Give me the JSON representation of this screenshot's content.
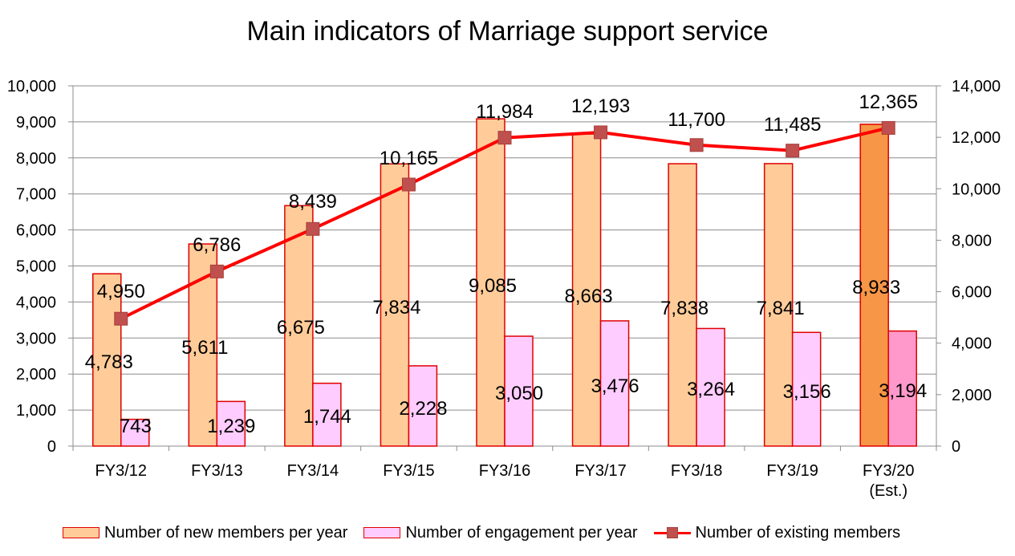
{
  "chart_data": {
    "type": "bar",
    "title": "Main indicators of Marriage support service",
    "categories": [
      "FY3/12",
      "FY3/13",
      "FY3/14",
      "FY3/15",
      "FY3/16",
      "FY3/17",
      "FY3/18",
      "FY3/19",
      "FY3/20\n(Est.)"
    ],
    "series": [
      {
        "name": "Number of new members per year",
        "kind": "bar",
        "axis": "left",
        "values": [
          4783,
          5611,
          6675,
          7834,
          9085,
          8663,
          7838,
          7841,
          8933
        ],
        "labels": [
          "4,783",
          "5,611",
          "6,675",
          "7,834",
          "9,085",
          "8,663",
          "7,838",
          "7,841",
          "8,933"
        ],
        "color": "#FFCC99",
        "stroke": "#E00000",
        "highlight_color": "#F79646"
      },
      {
        "name": "Number of engagement per year",
        "kind": "bar",
        "axis": "left",
        "values": [
          743,
          1239,
          1744,
          2228,
          3050,
          3476,
          3264,
          3156,
          3194
        ],
        "labels": [
          "743",
          "1,239",
          "1,744",
          "2,228",
          "3,050",
          "3,476",
          "3,264",
          "3,156",
          "3,194"
        ],
        "color": "#FFCCFF",
        "stroke": "#E00000",
        "highlight_color": "#FF99CC"
      },
      {
        "name": "Number of existing members",
        "kind": "line",
        "axis": "right",
        "values": [
          4950,
          6786,
          8439,
          10165,
          11984,
          12193,
          11700,
          11485,
          12365
        ],
        "labels": [
          "4,950",
          "6,786",
          "8,439",
          "10,165",
          "11,984",
          "12,193",
          "11,700",
          "11,485",
          "12,365"
        ],
        "color": "#FF0000",
        "marker_color": "#C0504D"
      }
    ],
    "highlight_category": "FY3/20\n(Est.)",
    "ylim_left": [
      0,
      10000
    ],
    "ylim_right": [
      0,
      14000
    ],
    "yticks_left": [
      "0",
      "1,000",
      "2,000",
      "3,000",
      "4,000",
      "5,000",
      "6,000",
      "7,000",
      "8,000",
      "9,000",
      "10,000"
    ],
    "yticks_right": [
      "0",
      "2,000",
      "4,000",
      "6,000",
      "8,000",
      "10,000",
      "12,000",
      "14,000"
    ],
    "grid": true,
    "legend_position": "bottom"
  }
}
